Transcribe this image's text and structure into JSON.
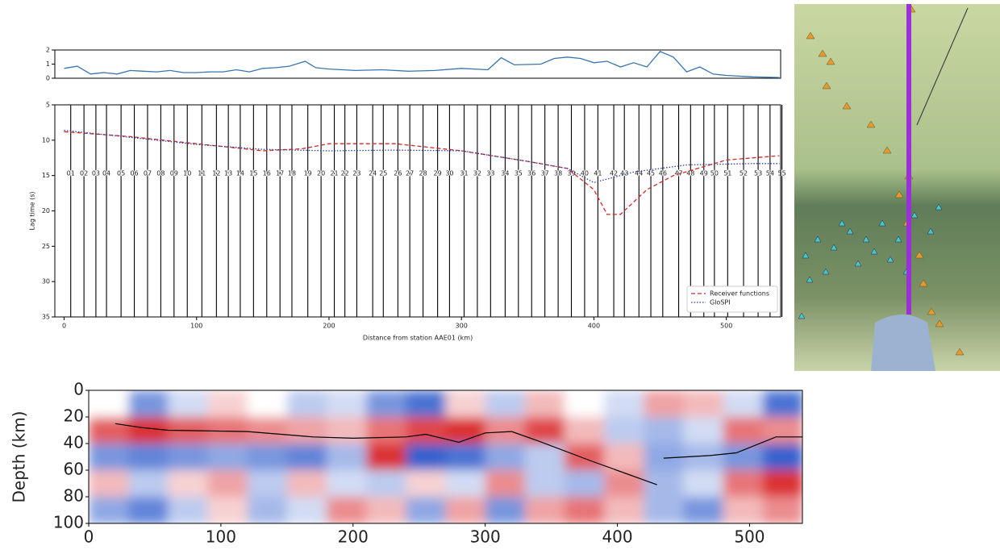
{
  "chart_data": [
    {
      "type": "line",
      "color": "#3a75b0",
      "x": [
        0,
        10,
        20,
        30,
        40,
        50,
        60,
        70,
        80,
        90,
        100,
        110,
        120,
        130,
        140,
        150,
        160,
        170,
        182,
        190,
        200,
        220,
        240,
        260,
        280,
        300,
        320,
        330,
        340,
        360,
        370,
        380,
        390,
        400,
        410,
        420,
        430,
        440,
        450,
        460,
        470,
        480,
        490,
        500,
        520,
        540
      ],
      "values": [
        0.7,
        0.85,
        0.3,
        0.4,
        0.3,
        0.55,
        0.5,
        0.45,
        0.55,
        0.4,
        0.4,
        0.45,
        0.45,
        0.6,
        0.45,
        0.7,
        0.75,
        0.85,
        1.2,
        0.75,
        0.65,
        0.55,
        0.6,
        0.5,
        0.55,
        0.7,
        0.6,
        1.45,
        0.95,
        1.0,
        1.4,
        1.5,
        1.4,
        1.1,
        1.2,
        0.8,
        1.1,
        0.8,
        1.9,
        1.5,
        0.45,
        0.8,
        0.3,
        0.2,
        0.1,
        0.05
      ],
      "xlim": [
        -7,
        541
      ],
      "ylim": [
        0,
        2
      ],
      "yticks": [
        0,
        1,
        2
      ]
    },
    {
      "type": "wiggle",
      "xlabel": "Distance from station AAE01 (km)",
      "ylabel": "Lag time (s)",
      "xlim": [
        -7,
        541
      ],
      "ylim": [
        35,
        5
      ],
      "xticks": [
        0,
        100,
        200,
        300,
        400,
        500
      ],
      "yticks": [
        5,
        10,
        15,
        20,
        25,
        30,
        35
      ],
      "stations": [
        "01",
        "02",
        "03",
        "04",
        "05",
        "06",
        "07",
        "08",
        "09",
        "10",
        "11",
        "12",
        "13",
        "14",
        "15",
        "16",
        "17",
        "18",
        "19",
        "20",
        "21",
        "22",
        "23",
        "24",
        "25",
        "26",
        "27",
        "28",
        "29",
        "30",
        "31",
        "32",
        "33",
        "34",
        "35",
        "36",
        "37",
        "38",
        "39",
        "40",
        "41",
        "42",
        "43",
        "44",
        "45",
        "46",
        "47",
        "48",
        "49",
        "50",
        "51",
        "52",
        "53",
        "54",
        "55"
      ],
      "station_x": [
        5,
        15,
        24,
        32,
        43,
        53,
        63,
        73,
        83,
        93,
        104,
        115,
        124,
        133,
        143,
        153,
        163,
        172,
        184,
        194,
        204,
        212,
        221,
        233,
        241,
        252,
        261,
        271,
        282,
        291,
        302,
        312,
        322,
        333,
        343,
        353,
        363,
        373,
        383,
        393,
        403,
        415,
        423,
        434,
        443,
        452,
        464,
        473,
        483,
        491,
        501,
        513,
        524,
        533,
        542
      ],
      "legend": "lower right",
      "series": [
        {
          "name": "Receiver functions",
          "color": "#d62728",
          "style": "dashed",
          "x": [
            0,
            50,
            100,
            150,
            180,
            200,
            250,
            300,
            350,
            380,
            400,
            410,
            420,
            440,
            460,
            500,
            540
          ],
          "values": [
            8.8,
            9.5,
            10.5,
            11.5,
            11.2,
            10.5,
            10.5,
            11.5,
            13,
            14,
            17,
            20.5,
            20.5,
            17,
            15,
            12.8,
            12.2
          ]
        },
        {
          "name": "GloSPI",
          "color": "#2b3fa0",
          "style": "dotted",
          "x": [
            0,
            50,
            100,
            150,
            200,
            250,
            300,
            350,
            380,
            400,
            430,
            470,
            520,
            540
          ],
          "values": [
            8.6,
            9.6,
            10.6,
            11.3,
            11.5,
            11.4,
            11.5,
            13,
            14,
            16,
            14.5,
            13.5,
            13.3,
            13.3
          ]
        }
      ]
    },
    {
      "type": "heatmap",
      "ylabel": "Depth (km)",
      "xlim": [
        0,
        540
      ],
      "ylim": [
        100,
        0
      ],
      "xticks": [
        0,
        100,
        200,
        300,
        400,
        500
      ],
      "yticks": [
        0,
        20,
        40,
        60,
        80,
        100
      ],
      "cell_x": [
        15,
        45,
        75,
        105,
        135,
        165,
        195,
        225,
        255,
        285,
        315,
        345,
        375,
        405,
        435,
        465,
        495,
        525
      ],
      "cell_depth": [
        10,
        30,
        50,
        70,
        90
      ],
      "z": [
        [
          0,
          -0.6,
          -0.2,
          0.2,
          0,
          -0.3,
          -0.2,
          -0.6,
          -0.8,
          0.2,
          -0.3,
          0.3,
          0,
          -0.2,
          0.4,
          0.3,
          -0.2,
          -0.8
        ],
        [
          0.7,
          0.9,
          0.7,
          0.6,
          0.5,
          0.4,
          0.3,
          0.6,
          0.8,
          0.9,
          0.5,
          0.8,
          0.3,
          -0.3,
          -0.4,
          -0.2,
          0.6,
          0.5
        ],
        [
          -0.6,
          -0.7,
          -0.6,
          -0.5,
          -0.6,
          -0.7,
          -0.4,
          0.9,
          -0.9,
          -0.8,
          -0.5,
          -0.3,
          0.7,
          0.3,
          -0.5,
          -0.4,
          -0.6,
          -0.9
        ],
        [
          0.3,
          -0.3,
          0.2,
          0.4,
          -0.3,
          0.3,
          -0.2,
          -0.3,
          0.2,
          -0.2,
          0.5,
          -0.3,
          -0.4,
          0.5,
          -0.4,
          -0.2,
          0.6,
          0.9
        ],
        [
          -0.5,
          -0.7,
          -0.3,
          0.2,
          -0.4,
          -0.2,
          0.5,
          0.3,
          -0.5,
          0.4,
          -0.6,
          0.4,
          0.6,
          0.3,
          -0.4,
          -0.6,
          0.3,
          0.5
        ]
      ],
      "line_color": "#000000",
      "x": [
        20,
        40,
        60,
        120,
        170,
        200,
        240,
        255,
        280,
        300,
        320,
        340,
        380,
        430,
        432,
        435,
        470,
        490,
        520,
        540
      ],
      "values": [
        25,
        28,
        30,
        31,
        35,
        36,
        35,
        33,
        39,
        32,
        31,
        38,
        53,
        71,
        null,
        51,
        49,
        47,
        35,
        35
      ]
    }
  ]
}
